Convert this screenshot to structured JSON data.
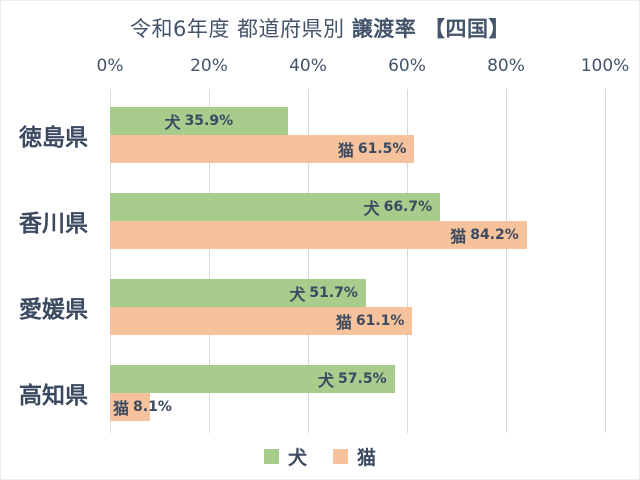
{
  "chart_data": {
    "type": "bar",
    "orientation": "horizontal",
    "title": "令和6年度 都道府県別 譲渡率 【四国】",
    "title_regular": "令和6年度 都道府県別 ",
    "title_bold": "譲渡率 【四国】",
    "categories": [
      "徳島県",
      "香川県",
      "愛媛県",
      "高知県"
    ],
    "series": [
      {
        "name": "犬",
        "color": "#a7cc8c",
        "values": [
          35.9,
          66.7,
          51.7,
          57.5
        ],
        "label_pos": [
          "center",
          "end",
          "end",
          "end"
        ]
      },
      {
        "name": "猫",
        "color": "#f5c29b",
        "values": [
          61.5,
          84.2,
          61.1,
          8.1
        ],
        "label_pos": [
          "end",
          "end",
          "end",
          "start"
        ]
      }
    ],
    "x_ticks": [
      "0%",
      "20%",
      "40%",
      "60%",
      "80%",
      "100%"
    ],
    "xlim": [
      0,
      100
    ],
    "x_axis_position": "top",
    "grid": true,
    "gridline_color": "#d9d9d9",
    "legend_position": "bottom",
    "legend": [
      {
        "label": "犬",
        "color": "#a7cc8c"
      },
      {
        "label": "猫",
        "color": "#f5c29b"
      }
    ],
    "title_color": "#44546a",
    "tick_color": "#44546a",
    "label_color": "#3c4a61",
    "unit_suffix": "%"
  }
}
